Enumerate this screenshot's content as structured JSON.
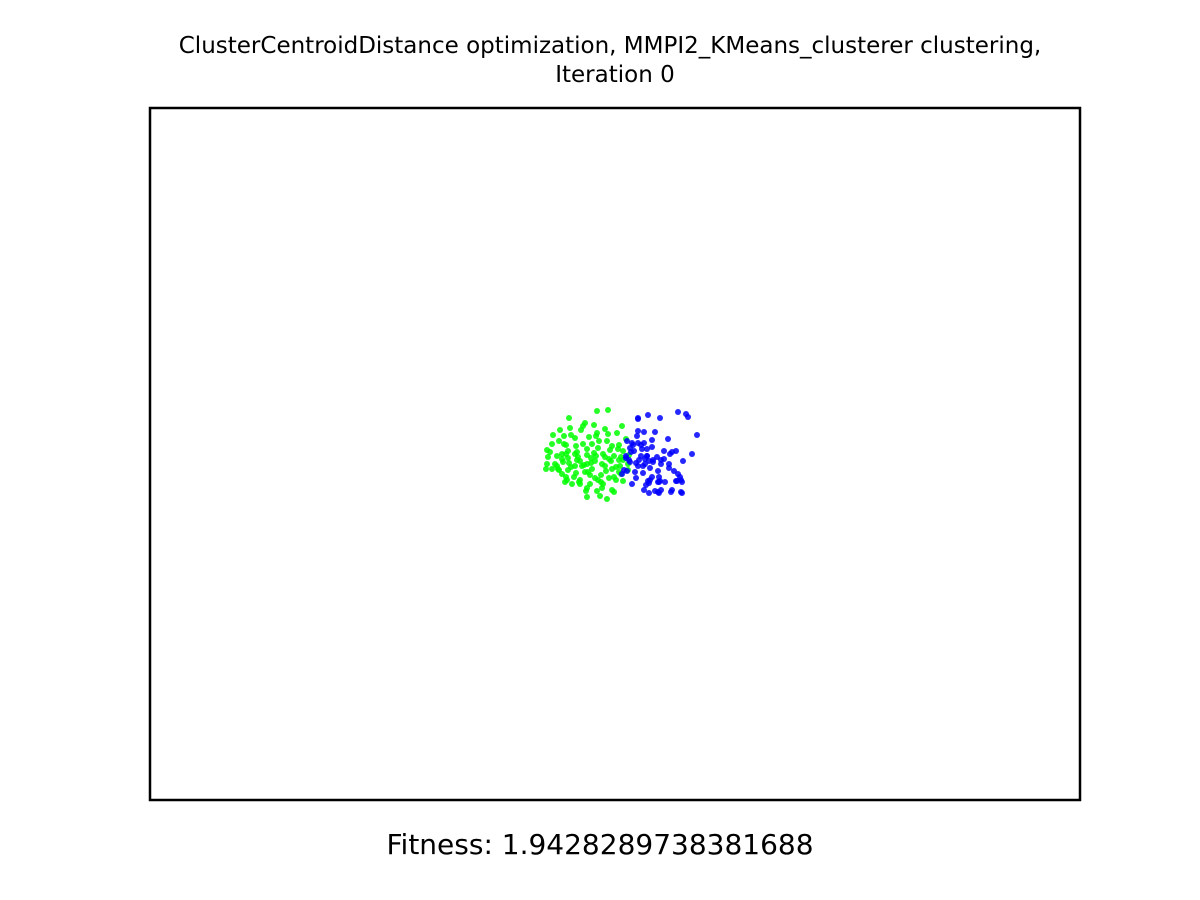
{
  "title": {
    "line1": "ClusterCentroidDistance optimization, MMPI2_KMeans_clusterer clustering,",
    "line2": "Iteration 0"
  },
  "fitness_text": "Fitness: 1.9428289738381688",
  "colors": {
    "cluster_green": "#00ff00",
    "cluster_blue": "#0000ff",
    "axes_frame": "#000000",
    "background": "#ffffff"
  },
  "chart_data": {
    "type": "scatter",
    "title": "ClusterCentroidDistance optimization, MMPI2_KMeans_clusterer clustering, Iteration 0",
    "xlabel": "",
    "ylabel": "",
    "xlim": [
      0,
      930
    ],
    "ylim": [
      0,
      692
    ],
    "axis_ticks": false,
    "grid": false,
    "legend": "none",
    "annotation": "Fitness: 1.9428289738381688",
    "series": [
      {
        "color": "#00ff00",
        "points": [
          [
            398,
            349
          ],
          [
            409,
            362
          ],
          [
            415,
            374
          ],
          [
            421,
            359
          ],
          [
            435,
            364
          ],
          [
            448,
            372
          ],
          [
            459,
            370
          ],
          [
            434,
            357
          ],
          [
            416,
            337
          ],
          [
            426,
            338
          ],
          [
            441,
            350
          ],
          [
            452,
            356
          ],
          [
            466,
            359
          ],
          [
            471,
            366
          ],
          [
            447,
            383
          ],
          [
            436,
            383
          ],
          [
            422,
            376
          ],
          [
            409,
            333
          ],
          [
            397,
            342
          ],
          [
            414,
            328
          ],
          [
            428,
            349
          ],
          [
            444,
            345
          ],
          [
            455,
            349
          ],
          [
            473,
            352
          ],
          [
            478,
            362
          ],
          [
            462,
            338
          ],
          [
            439,
            329
          ],
          [
            431,
            322
          ],
          [
            418,
            343
          ],
          [
            403,
            327
          ],
          [
            412,
            351
          ],
          [
            426,
            365
          ],
          [
            442,
            361
          ],
          [
            453,
            346
          ],
          [
            464,
            348
          ],
          [
            469,
            337
          ],
          [
            458,
            326
          ],
          [
            446,
            328
          ],
          [
            433,
            336
          ],
          [
            421,
            327
          ],
          [
            407,
            348
          ],
          [
            419,
            355
          ],
          [
            430,
            372
          ],
          [
            440,
            376
          ],
          [
            451,
            374
          ],
          [
            462,
            361
          ],
          [
            473,
            343
          ],
          [
            476,
            331
          ],
          [
            467,
            325
          ],
          [
            455,
            321
          ],
          [
            444,
            317
          ],
          [
            433,
            318
          ],
          [
            420,
            320
          ],
          [
            410,
            322
          ],
          [
            402,
            336
          ],
          [
            397,
            356
          ],
          [
            412,
            366
          ],
          [
            424,
            369
          ],
          [
            437,
            356
          ],
          [
            448,
            340
          ],
          [
            459,
            351
          ],
          [
            470,
            358
          ],
          [
            479,
            347
          ],
          [
            466,
            372
          ],
          [
            452,
            380
          ],
          [
            440,
            367
          ],
          [
            427,
            344
          ],
          [
            416,
            346
          ],
          [
            405,
            356
          ],
          [
            418,
            362
          ],
          [
            432,
            358
          ],
          [
            445,
            353
          ],
          [
            456,
            363
          ],
          [
            468,
            341
          ],
          [
            473,
            373
          ],
          [
            462,
            382
          ],
          [
            450,
            388
          ],
          [
            437,
            380
          ],
          [
            429,
            374
          ],
          [
            416,
            369
          ],
          [
            408,
            361
          ],
          [
            400,
            344
          ],
          [
            414,
            336
          ],
          [
            425,
            330
          ],
          [
            437,
            341
          ],
          [
            449,
            333
          ],
          [
            460,
            342
          ],
          [
            471,
            349
          ],
          [
            478,
            356
          ],
          [
            447,
            303
          ],
          [
            458,
            302
          ],
          [
            435,
            315
          ],
          [
            419,
            310
          ],
          [
            407,
            358
          ],
          [
            396,
            361
          ],
          [
            412,
            346
          ],
          [
            427,
            352
          ],
          [
            441,
            355
          ],
          [
            455,
            358
          ],
          [
            469,
            364
          ],
          [
            464,
            369
          ],
          [
            451,
            367
          ],
          [
            438,
            364
          ],
          [
            425,
            358
          ],
          [
            413,
            354
          ],
          [
            447,
            325
          ],
          [
            457,
            333
          ],
          [
            472,
            318
          ],
          [
            442,
            336
          ],
          [
            430,
            353
          ],
          [
            461,
            353
          ],
          [
            464,
            384
          ],
          [
            457,
            391
          ],
          [
            430,
            376
          ],
          [
            417,
            372
          ],
          [
            437,
            389
          ],
          [
            402,
            361
          ],
          [
            445,
            370
          ],
          [
            453,
            376
          ],
          [
            469,
            352
          ],
          [
            425,
            346
          ],
          [
            437,
            347
          ],
          [
            418,
            350
          ],
          [
            446,
            348
          ]
        ]
      },
      {
        "color": "#0000ff",
        "points": [
          [
            477,
            333
          ],
          [
            483,
            337
          ],
          [
            492,
            341
          ],
          [
            497,
            348
          ],
          [
            503,
            354
          ],
          [
            511,
            356
          ],
          [
            489,
            352
          ],
          [
            480,
            354
          ],
          [
            488,
            358
          ],
          [
            500,
            360
          ],
          [
            508,
            363
          ],
          [
            495,
            351
          ],
          [
            476,
            348
          ],
          [
            484,
            343
          ],
          [
            494,
            335
          ],
          [
            502,
            339
          ],
          [
            514,
            343
          ],
          [
            522,
            344
          ],
          [
            526,
            343
          ],
          [
            518,
            331
          ],
          [
            505,
            324
          ],
          [
            488,
            323
          ],
          [
            494,
            324
          ],
          [
            510,
            310
          ],
          [
            498,
            307
          ],
          [
            488,
            311
          ],
          [
            502,
            332
          ],
          [
            481,
            344
          ],
          [
            486,
            370
          ],
          [
            493,
            365
          ],
          [
            498,
            373
          ],
          [
            509,
            369
          ],
          [
            519,
            360
          ],
          [
            524,
            363
          ],
          [
            528,
            366
          ],
          [
            532,
            374
          ],
          [
            527,
            373
          ],
          [
            531,
            384
          ],
          [
            522,
            382
          ],
          [
            515,
            374
          ],
          [
            510,
            373
          ],
          [
            502,
            369
          ],
          [
            499,
            385
          ],
          [
            496,
            377
          ],
          [
            511,
            382
          ],
          [
            508,
            374
          ],
          [
            526,
            373
          ],
          [
            531,
            372
          ],
          [
            521,
            384
          ],
          [
            509,
            385
          ],
          [
            508,
            384
          ],
          [
            509,
            374
          ],
          [
            499,
            375
          ],
          [
            486,
            355
          ],
          [
            479,
            352
          ],
          [
            474,
            362
          ],
          [
            493,
            358
          ],
          [
            497,
            348
          ],
          [
            511,
            352
          ],
          [
            542,
            346
          ],
          [
            547,
            327
          ],
          [
            528,
            304
          ],
          [
            536,
            306
          ],
          [
            538,
            309
          ],
          [
            488,
            310
          ],
          [
            497,
            341
          ],
          [
            530,
            369
          ],
          [
            532,
            385
          ],
          [
            505,
            383
          ],
          [
            495,
            356
          ],
          [
            491,
            348
          ],
          [
            482,
            335
          ],
          [
            520,
            346
          ],
          [
            533,
            353
          ],
          [
            476,
            350
          ],
          [
            480,
            340
          ],
          [
            488,
            335
          ],
          [
            503,
            352
          ],
          [
            499,
            353
          ],
          [
            507,
            349
          ],
          [
            514,
            351
          ],
          [
            519,
            356
          ],
          [
            477,
            363
          ],
          [
            472,
            366
          ],
          [
            482,
            376
          ],
          [
            494,
            382
          ],
          [
            500,
            372
          ],
          [
            485,
            364
          ],
          [
            491,
            337
          ],
          [
            487,
            328
          ]
        ]
      }
    ]
  }
}
